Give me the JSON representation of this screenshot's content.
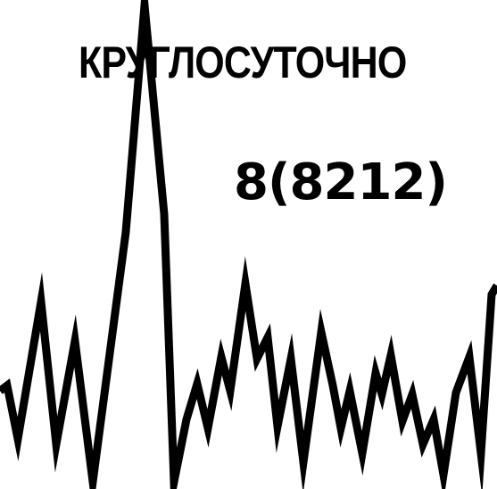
{
  "headline": "КРУГЛОСУТОЧНО",
  "phone_prefix": "8(8212)",
  "colors": {
    "background": "#ffffff",
    "ink": "#000000"
  },
  "icon": "pulse-waveform"
}
